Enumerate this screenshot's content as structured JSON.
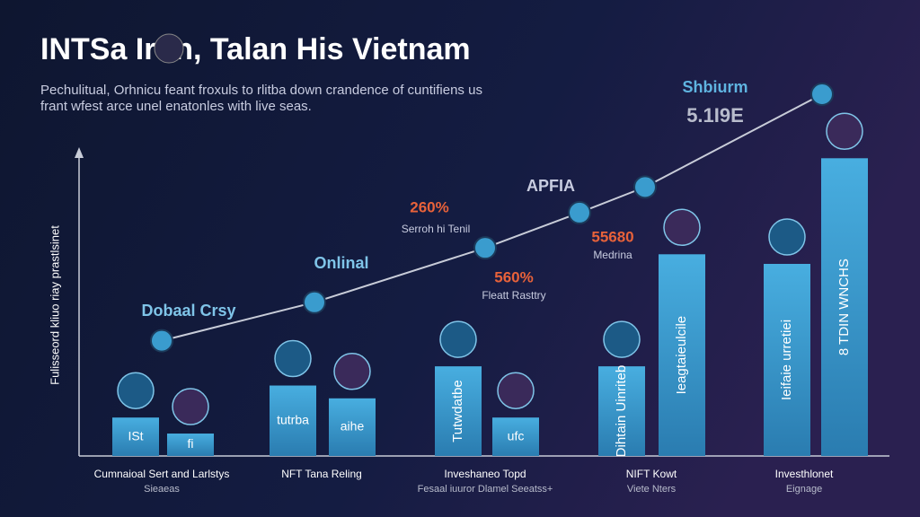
{
  "chart_data": [
    {
      "type": "bar",
      "title": "INTSa Iron, Talan His Vietnam",
      "subtitle": [
        "Pechulitual, Orhnicu feant froxuls to rlitba down crandence of cuntifiens us",
        "frant wfest arce unel enatonles with live seas."
      ],
      "y_label": "Fulisseord kliuo riay prastlsinet",
      "categories": [
        "Cumnaioal Sert and Larlstys",
        "NFT Tana Reling",
        "Inveshaneo Topd",
        "NIFT Kowt",
        "Investhlonet"
      ],
      "category_subtitles": [
        "Sieaeas",
        null,
        "Fesaal iuuror Dlamel Seeatss+",
        "Viete Nters",
        "Eignage"
      ],
      "ylim": [
        0,
        120
      ],
      "series": [
        {
          "color": "#3a9cce",
          "values": [
            12,
            22,
            28,
            28,
            60
          ],
          "labels": [
            "ISt",
            "tutrba",
            "Tutwdatbe",
            "Dihtain Uinriteb",
            "Ieifaie urretiei"
          ]
        },
        {
          "color": "#3a9cce",
          "values": [
            7,
            18,
            12,
            63,
            93
          ],
          "labels": [
            "fi",
            "aihe",
            "ufc",
            "Ieagtaieulcile",
            "8 TDIN WNCHS"
          ]
        }
      ],
      "annotations": [
        "Dobaal Crsy",
        "Onlinal",
        "260%",
        "Serroh hi Tenil",
        "APFIA",
        "55680",
        "Medrina",
        "560%",
        "Fleatt Rasttry",
        "Shbiurm",
        "5.1I9E"
      ]
    },
    {
      "type": "line",
      "categories": [
        null,
        null,
        null,
        null,
        null,
        null
      ],
      "values": [
        36,
        48,
        65,
        76,
        84,
        113
      ],
      "ylim": [
        0,
        120
      ],
      "color": "#c8ccd8"
    }
  ]
}
